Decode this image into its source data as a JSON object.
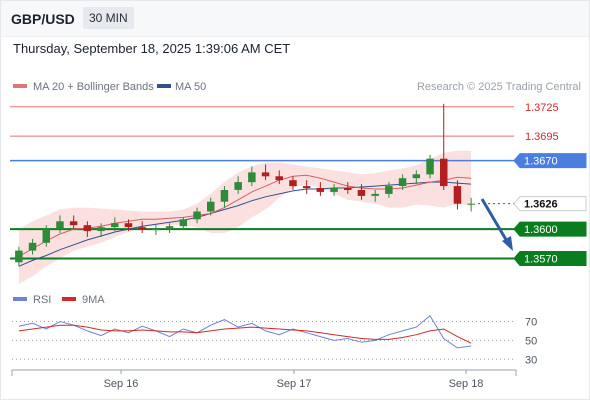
{
  "header": {
    "pair": "GBP/USD",
    "timeframe": "30 MIN"
  },
  "datetime": "Thursday, September 18, 2025 1:39:06 AM CET",
  "legend": {
    "ma20": "MA 20 + Bollinger Bands",
    "ma50": "MA 50",
    "credit": "Research © 2025 Trading Central"
  },
  "rsi_legend": {
    "rsi": "RSI",
    "ma9": "9MA"
  },
  "colors": {
    "resistance": "#e07575",
    "pivot": "#4a7fe0",
    "support": "#0a7d1e",
    "candle_up": "#2f8a3a",
    "candle_down": "#b31e1e",
    "ma20": "#d66060",
    "ma50": "#33508f",
    "rsi": "#6c83d6",
    "rsi_ma": "#d62828",
    "arrow": "#2e5da8"
  },
  "chart_data": [
    {
      "type": "candlestick",
      "title": "GBP/USD 30 MIN",
      "x_ticks": [
        "Sep 16",
        "Sep 17",
        "Sep 18"
      ],
      "ylim": [
        1.3548,
        1.3735
      ],
      "levels": [
        {
          "value": 1.3725,
          "label": "1.3725",
          "kind": "resistance"
        },
        {
          "value": 1.3695,
          "label": "1.3695",
          "kind": "resistance"
        },
        {
          "value": 1.367,
          "label": "1.3670",
          "kind": "pivot"
        },
        {
          "value": 1.3626,
          "label": "1.3626",
          "kind": "last"
        },
        {
          "value": 1.36,
          "label": "1.3600",
          "kind": "support"
        },
        {
          "value": 1.357,
          "label": "1.3570",
          "kind": "support"
        }
      ],
      "series": [
        {
          "name": "MA 20 + Bollinger Bands",
          "values": [
            1.3572,
            1.358,
            1.3588,
            1.3595,
            1.36,
            1.3601,
            1.3603,
            1.3606,
            1.3608,
            1.361,
            1.361,
            1.3611,
            1.3612,
            1.3614,
            1.3616,
            1.3622,
            1.363,
            1.3638,
            1.3644,
            1.365,
            1.3654,
            1.3655,
            1.3652,
            1.3648,
            1.3644,
            1.3642,
            1.3641,
            1.3641,
            1.3642,
            1.3645,
            1.3648,
            1.365,
            1.3653,
            1.3652
          ]
        },
        {
          "name": "MA 50",
          "values": [
            1.3562,
            1.3568,
            1.3573,
            1.3579,
            1.3584,
            1.3589,
            1.3593,
            1.3597,
            1.36,
            1.3603,
            1.3605,
            1.3607,
            1.3609,
            1.3612,
            1.3616,
            1.362,
            1.3624,
            1.3629,
            1.3633,
            1.3636,
            1.3639,
            1.3641,
            1.3641,
            1.3642,
            1.3642,
            1.3643,
            1.3644,
            1.3645,
            1.3646,
            1.3647,
            1.3648,
            1.3648,
            1.3647,
            1.3646
          ]
        },
        {
          "name": "Upper band",
          "values": [
            1.36,
            1.3608,
            1.3614,
            1.362,
            1.3622,
            1.3622,
            1.3621,
            1.362,
            1.3619,
            1.3618,
            1.3618,
            1.3618,
            1.362,
            1.3626,
            1.3636,
            1.3648,
            1.3658,
            1.3664,
            1.3668,
            1.3668,
            1.3666,
            1.3664,
            1.3662,
            1.366,
            1.3658,
            1.3656,
            1.3657,
            1.366,
            1.3662,
            1.3665,
            1.3672,
            1.3678,
            1.368,
            1.368
          ]
        },
        {
          "name": "Lower band",
          "values": [
            1.3544,
            1.3552,
            1.3562,
            1.357,
            1.3578,
            1.3582,
            1.3586,
            1.3592,
            1.3597,
            1.3602,
            1.3603,
            1.3604,
            1.3604,
            1.3602,
            1.3596,
            1.3596,
            1.3602,
            1.3612,
            1.362,
            1.3632,
            1.3642,
            1.3646,
            1.3642,
            1.3636,
            1.363,
            1.3628,
            1.3626,
            1.3622,
            1.3622,
            1.3625,
            1.3624,
            1.3622,
            1.3626,
            1.3624
          ]
        }
      ],
      "candles": [
        [
          1.3566,
          1.3582,
          1.3562,
          1.3578
        ],
        [
          1.3578,
          1.359,
          1.3574,
          1.3586
        ],
        [
          1.3586,
          1.3604,
          1.3582,
          1.36
        ],
        [
          1.36,
          1.3614,
          1.3596,
          1.3608
        ],
        [
          1.3608,
          1.3614,
          1.36,
          1.3604
        ],
        [
          1.3604,
          1.3608,
          1.3592,
          1.3598
        ],
        [
          1.3598,
          1.3606,
          1.3592,
          1.3602
        ],
        [
          1.3602,
          1.3612,
          1.3598,
          1.3606
        ],
        [
          1.3606,
          1.361,
          1.3598,
          1.3602
        ],
        [
          1.3602,
          1.3608,
          1.3596,
          1.36
        ],
        [
          1.36,
          1.3604,
          1.3594,
          1.36
        ],
        [
          1.36,
          1.3606,
          1.3596,
          1.3603
        ],
        [
          1.3603,
          1.3612,
          1.36,
          1.361
        ],
        [
          1.361,
          1.3622,
          1.3606,
          1.3618
        ],
        [
          1.3618,
          1.3632,
          1.3614,
          1.3628
        ],
        [
          1.3628,
          1.3644,
          1.3622,
          1.364
        ],
        [
          1.364,
          1.3654,
          1.3636,
          1.3648
        ],
        [
          1.3648,
          1.3664,
          1.3644,
          1.3658
        ],
        [
          1.3658,
          1.3666,
          1.365,
          1.3654
        ],
        [
          1.3654,
          1.366,
          1.3646,
          1.365
        ],
        [
          1.365,
          1.3654,
          1.364,
          1.3644
        ],
        [
          1.3644,
          1.365,
          1.3636,
          1.3642
        ],
        [
          1.3642,
          1.3648,
          1.3634,
          1.3638
        ],
        [
          1.3638,
          1.3646,
          1.3634,
          1.3642
        ],
        [
          1.3642,
          1.3648,
          1.3636,
          1.364
        ],
        [
          1.364,
          1.3646,
          1.363,
          1.3634
        ],
        [
          1.3634,
          1.364,
          1.3628,
          1.3636
        ],
        [
          1.3636,
          1.3648,
          1.3632,
          1.3644
        ],
        [
          1.3644,
          1.3656,
          1.364,
          1.3652
        ],
        [
          1.3652,
          1.366,
          1.3646,
          1.3656
        ],
        [
          1.3656,
          1.3676,
          1.3652,
          1.3672
        ],
        [
          1.3672,
          1.3728,
          1.364,
          1.3644
        ],
        [
          1.3644,
          1.365,
          1.362,
          1.3626
        ],
        [
          1.3626,
          1.3632,
          1.3618,
          1.3626
        ]
      ]
    },
    {
      "type": "line",
      "title": "RSI",
      "y_ticks": [
        70,
        50,
        30
      ],
      "ylim": [
        25,
        80
      ],
      "series": [
        {
          "name": "RSI",
          "values": [
            65,
            68,
            62,
            70,
            66,
            60,
            55,
            62,
            58,
            65,
            60,
            54,
            62,
            58,
            66,
            72,
            64,
            68,
            60,
            56,
            62,
            58,
            54,
            50,
            52,
            48,
            50,
            56,
            60,
            64,
            76,
            52,
            42,
            44
          ]
        },
        {
          "name": "9MA",
          "values": [
            60,
            62,
            64,
            66,
            66,
            64,
            61,
            60,
            60,
            61,
            60,
            59,
            59,
            58,
            60,
            62,
            63,
            64,
            63,
            62,
            61,
            60,
            58,
            56,
            54,
            52,
            51,
            51,
            53,
            56,
            60,
            62,
            54,
            47
          ]
        }
      ]
    }
  ]
}
